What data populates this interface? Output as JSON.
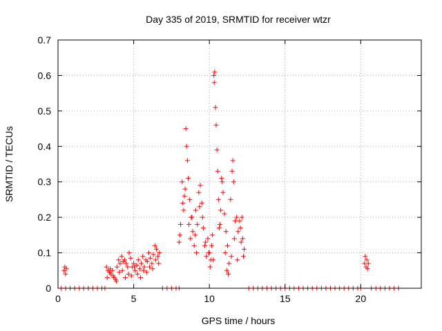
{
  "colors": {
    "series": "#ff0000",
    "grid": "#a0a0a0",
    "frame": "#000000"
  },
  "chart_data": {
    "type": "scatter",
    "title": "Day 335 of 2019, SRMTID for receiver wtzr",
    "xlabel": "GPS time / hours",
    "ylabel": "SRMTID / TECUs",
    "xlim": [
      0,
      24
    ],
    "ylim": [
      0,
      0.7
    ],
    "xticks": [
      0,
      5,
      10,
      15,
      20
    ],
    "xtick_labels": [
      "0",
      "5",
      "10",
      "15",
      "20"
    ],
    "yticks": [
      0,
      0.1,
      0.2,
      0.3,
      0.4,
      0.5,
      0.6,
      0.7
    ],
    "ytick_labels": [
      "0",
      "0.1",
      "0.2",
      "0.3",
      "0.4",
      "0.5",
      "0.6",
      "0.7"
    ],
    "grid": true,
    "marker": "plus",
    "series": [
      {
        "name": "SRMTID",
        "x": [
          0.4,
          0.45,
          0.5,
          0.55,
          3.2,
          3.3,
          3.4,
          3.5,
          3.6,
          3.7,
          3.8,
          3.9,
          4.0,
          4.1,
          4.2,
          4.3,
          4.4,
          4.5,
          4.6,
          4.7,
          4.8,
          4.9,
          5.0,
          5.1,
          5.2,
          5.3,
          5.4,
          5.5,
          5.6,
          5.7,
          5.8,
          5.9,
          6.0,
          6.1,
          6.2,
          6.3,
          6.4,
          6.5,
          6.6,
          6.7,
          3.25,
          3.45,
          3.65,
          3.85,
          4.05,
          4.25,
          4.45,
          4.65,
          4.85,
          5.05,
          5.25,
          5.45,
          5.65,
          5.85,
          6.05,
          6.25,
          6.45,
          6.65,
          8.0,
          8.1,
          8.2,
          8.3,
          8.4,
          8.45,
          8.5,
          8.55,
          8.6,
          8.7,
          8.8,
          8.9,
          9.0,
          9.1,
          9.2,
          9.3,
          9.4,
          9.5,
          9.6,
          9.7,
          9.8,
          9.9,
          10.0,
          10.1,
          10.2,
          10.3,
          10.32,
          10.35,
          10.4,
          10.45,
          10.5,
          10.55,
          10.6,
          10.7,
          10.8,
          10.9,
          11.0,
          11.1,
          11.2,
          11.3,
          11.4,
          11.5,
          11.55,
          11.6,
          11.7,
          11.8,
          11.9,
          12.0,
          12.1,
          12.2,
          12.3,
          8.05,
          8.25,
          8.35,
          8.65,
          8.75,
          8.85,
          9.05,
          9.15,
          9.35,
          9.55,
          9.75,
          9.95,
          10.05,
          10.15,
          10.25,
          10.65,
          10.75,
          10.85,
          11.05,
          11.15,
          11.25,
          11.45,
          11.65,
          11.85,
          12.05,
          12.15,
          12.25,
          20.25,
          20.3,
          20.35,
          20.4,
          20.45,
          20.5,
          0.2,
          0.5,
          0.8,
          1.1,
          1.4,
          1.7,
          2.0,
          2.3,
          2.6,
          2.9,
          3.1,
          6.9,
          7.2,
          7.5,
          7.8,
          8.0,
          12.6,
          12.9,
          13.2,
          13.5,
          13.8,
          14.1,
          14.4,
          14.7,
          15.0,
          15.3,
          15.6,
          15.9,
          16.2,
          16.5,
          16.8,
          17.1,
          17.4,
          17.7,
          18.0,
          18.3,
          18.6,
          18.9,
          19.2,
          19.5,
          19.8,
          20.0,
          20.7,
          21.0,
          21.3,
          21.6,
          21.9,
          22.2,
          22.5
        ],
        "y": [
          0.05,
          0.06,
          0.04,
          0.055,
          0.06,
          0.05,
          0.045,
          0.04,
          0.05,
          0.03,
          0.025,
          0.06,
          0.08,
          0.07,
          0.09,
          0.075,
          0.08,
          0.07,
          0.06,
          0.1,
          0.085,
          0.06,
          0.07,
          0.05,
          0.065,
          0.08,
          0.055,
          0.07,
          0.09,
          0.06,
          0.08,
          0.075,
          0.1,
          0.085,
          0.07,
          0.095,
          0.12,
          0.11,
          0.09,
          0.1,
          0.03,
          0.055,
          0.035,
          0.02,
          0.045,
          0.05,
          0.03,
          0.04,
          0.035,
          0.06,
          0.04,
          0.03,
          0.05,
          0.045,
          0.06,
          0.055,
          0.08,
          0.07,
          0.13,
          0.18,
          0.3,
          0.22,
          0.28,
          0.45,
          0.4,
          0.36,
          0.31,
          0.25,
          0.2,
          0.16,
          0.12,
          0.22,
          0.18,
          0.27,
          0.29,
          0.24,
          0.17,
          0.12,
          0.09,
          0.14,
          0.1,
          0.08,
          0.15,
          0.6,
          0.58,
          0.61,
          0.51,
          0.46,
          0.39,
          0.33,
          0.25,
          0.18,
          0.31,
          0.27,
          0.21,
          0.16,
          0.12,
          0.07,
          0.25,
          0.33,
          0.36,
          0.3,
          0.19,
          0.2,
          0.16,
          0.19,
          0.13,
          0.14,
          0.11,
          0.15,
          0.24,
          0.26,
          0.18,
          0.14,
          0.2,
          0.15,
          0.1,
          0.23,
          0.2,
          0.13,
          0.1,
          0.06,
          0.12,
          0.08,
          0.17,
          0.22,
          0.3,
          0.1,
          0.05,
          0.04,
          0.09,
          0.14,
          0.08,
          0.17,
          0.2,
          0.09,
          0.07,
          0.09,
          0.06,
          0.08,
          0.055,
          0.07,
          0,
          0,
          0,
          0,
          0,
          0,
          0,
          0,
          0,
          0,
          0,
          0,
          0,
          0,
          0,
          0,
          0,
          0,
          0,
          0,
          0,
          0,
          0,
          0,
          0,
          0,
          0,
          0,
          0,
          0,
          0,
          0,
          0,
          0,
          0,
          0,
          0,
          0,
          0,
          0,
          0,
          0,
          0,
          0,
          0,
          0,
          0,
          0,
          0
        ]
      }
    ]
  }
}
